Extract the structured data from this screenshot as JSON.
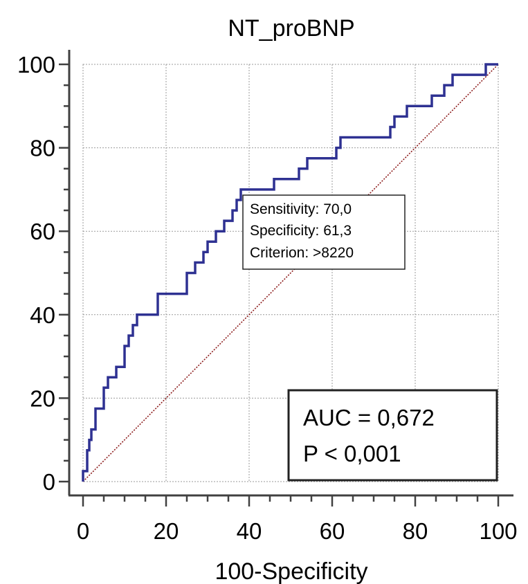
{
  "chart_data": {
    "type": "line",
    "title": "NT_proBNP",
    "xlabel": "100-Specificity",
    "ylabel": "",
    "xlim": [
      0,
      100
    ],
    "ylim": [
      0,
      100
    ],
    "x_ticks": [
      "0",
      "20",
      "40",
      "60",
      "80",
      "100"
    ],
    "y_ticks": [
      "0",
      "20",
      "40",
      "60",
      "80",
      "100"
    ],
    "grid": true,
    "series": [
      {
        "values": [
          [
            0,
            0
          ],
          [
            0,
            1.3
          ],
          [
            0,
            2.5
          ],
          [
            1.0,
            2.5
          ],
          [
            1.0,
            7.5
          ],
          [
            1.5,
            7.5
          ],
          [
            1.5,
            10
          ],
          [
            2.0,
            10
          ],
          [
            2.0,
            12.5
          ],
          [
            3.0,
            12.5
          ],
          [
            3.0,
            17.5
          ],
          [
            5.0,
            17.5
          ],
          [
            5.0,
            22.5
          ],
          [
            6.0,
            22.5
          ],
          [
            6.0,
            25
          ],
          [
            8.0,
            25
          ],
          [
            8.0,
            27.5
          ],
          [
            10.0,
            27.5
          ],
          [
            10.0,
            32.5
          ],
          [
            11.0,
            32.5
          ],
          [
            11.0,
            35
          ],
          [
            12.0,
            35
          ],
          [
            12.0,
            37.5
          ],
          [
            13.0,
            37.5
          ],
          [
            13.0,
            40
          ],
          [
            18.0,
            40
          ],
          [
            18.0,
            45
          ],
          [
            25.0,
            45
          ],
          [
            25.0,
            50
          ],
          [
            27.0,
            50
          ],
          [
            27.0,
            52.5
          ],
          [
            29.0,
            52.5
          ],
          [
            29.0,
            55
          ],
          [
            30.0,
            55
          ],
          [
            30.0,
            57.5
          ],
          [
            32.0,
            57.5
          ],
          [
            32.0,
            60
          ],
          [
            34.0,
            60
          ],
          [
            34.0,
            62.5
          ],
          [
            36.0,
            62.5
          ],
          [
            36.0,
            65
          ],
          [
            37.0,
            65
          ],
          [
            37.0,
            67.5
          ],
          [
            38.0,
            67.5
          ],
          [
            38.0,
            70
          ],
          [
            46.0,
            70
          ],
          [
            46.0,
            72.5
          ],
          [
            52.0,
            72.5
          ],
          [
            52.0,
            75
          ],
          [
            54.0,
            75
          ],
          [
            54.0,
            77.5
          ],
          [
            61.0,
            77.5
          ],
          [
            61.0,
            80
          ],
          [
            62.0,
            80
          ],
          [
            62.0,
            82.5
          ],
          [
            74.0,
            82.5
          ],
          [
            74.0,
            85
          ],
          [
            75.0,
            85
          ],
          [
            75.0,
            87.5
          ],
          [
            78.0,
            87.5
          ],
          [
            78.0,
            90
          ],
          [
            84.0,
            90
          ],
          [
            84.0,
            92.5
          ],
          [
            87.0,
            92.5
          ],
          [
            87.0,
            95
          ],
          [
            89.0,
            95
          ],
          [
            89.0,
            97.5
          ],
          [
            97.0,
            97.5
          ],
          [
            97.0,
            100
          ],
          [
            100,
            100
          ]
        ],
        "color": "#2e3192"
      },
      {
        "values": [
          [
            0,
            0
          ],
          [
            100,
            100
          ]
        ],
        "color": "#8b1a1a",
        "style": "dotted"
      }
    ],
    "annotations": {
      "criterion_box": {
        "lines": [
          "Sensitivity: 70,0",
          "Specificity: 61,3",
          "Criterion: >8220"
        ]
      },
      "auc_box": {
        "lines": [
          "AUC = 0,672",
          "P < 0,001"
        ]
      }
    }
  }
}
